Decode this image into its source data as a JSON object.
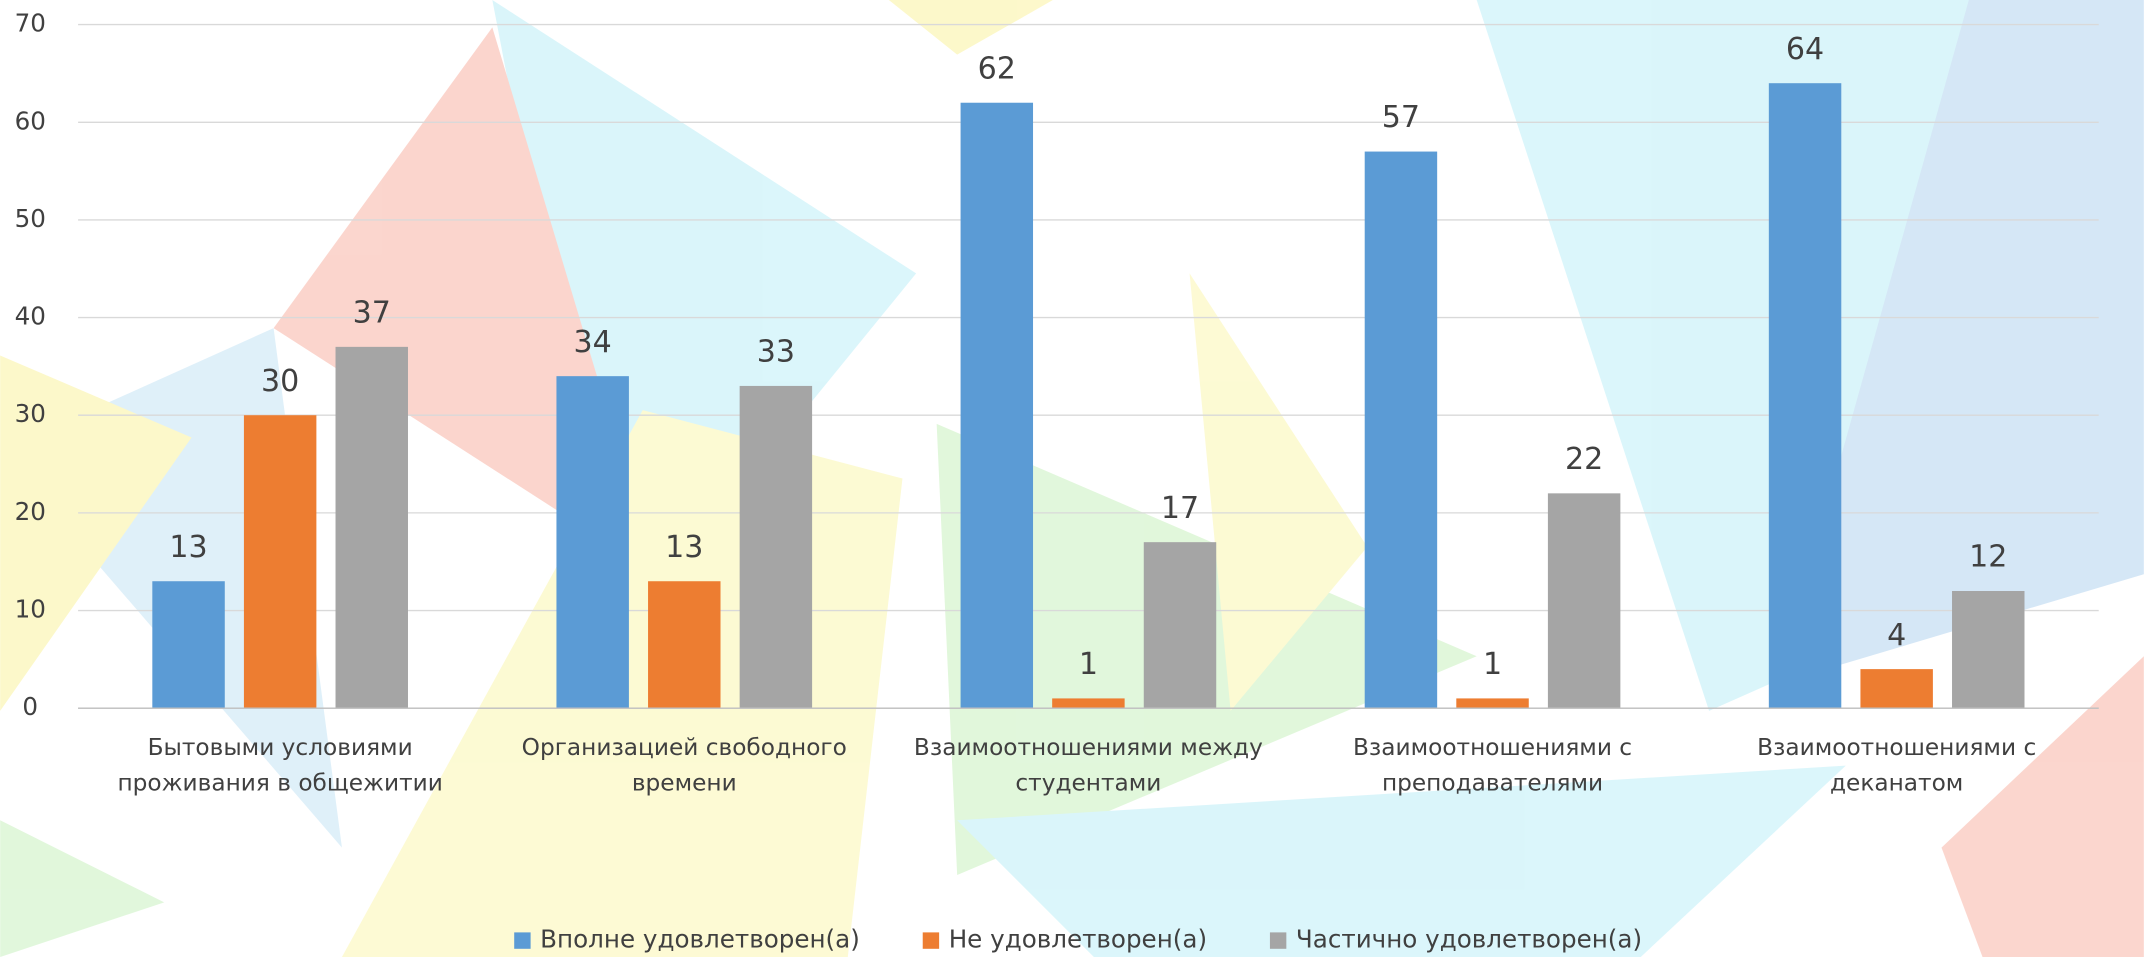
{
  "chart_data": {
    "type": "bar",
    "categories": [
      "Бытовыми условиями проживания в общежитии",
      "Организацией свободного времени",
      "Взаимоотношениями между студентами",
      "Взаимоотношениями с преподавателями",
      "Взаимоотношениями с деканатом"
    ],
    "series": [
      {
        "name": "Вполне удовлетворен(а)",
        "color": "#5b9bd5",
        "values": [
          13,
          34,
          62,
          57,
          64
        ]
      },
      {
        "name": "Не удовлетворен(а)",
        "color": "#ed7d31",
        "values": [
          30,
          13,
          1,
          1,
          4
        ]
      },
      {
        "name": "Частично удовлетворен(а)",
        "color": "#a5a5a5",
        "values": [
          37,
          33,
          17,
          22,
          12
        ]
      }
    ],
    "ylim": [
      0,
      70
    ],
    "yticks": [
      0,
      10,
      20,
      30,
      40,
      50,
      60,
      70
    ],
    "grid": true,
    "legend": "bottom"
  }
}
